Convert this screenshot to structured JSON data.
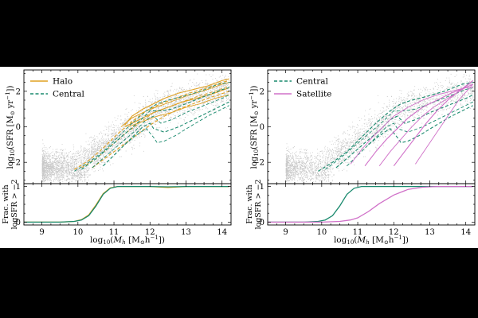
{
  "chart_data": [
    {
      "type": "line",
      "panel": "left",
      "title": "",
      "xlabel": "log10(Mh [M⊙h⁻¹])",
      "ylabel": "log10(SFR [M⊙ yr⁻¹])",
      "xlim": [
        8.5,
        14.25
      ],
      "ylim": [
        -3.2,
        3.2
      ],
      "xticks": [
        9,
        10,
        11,
        12,
        13,
        14
      ],
      "yticks": [
        -2,
        0,
        2
      ],
      "legend": {
        "placement": "top-left",
        "entries": [
          "Halo",
          "Central"
        ]
      },
      "colors": {
        "Halo": "#e0a020",
        "Central": "#1a8a6e",
        "scatter": "#c8c8c8"
      },
      "series": [
        {
          "name": "Halo",
          "style": "solid",
          "x": [
            11.3,
            11.5,
            11.8,
            12.1,
            12.4,
            12.8,
            13.2,
            13.6,
            14.0,
            14.2
          ],
          "values": [
            0.1,
            0.6,
            1.0,
            1.3,
            1.6,
            1.9,
            2.1,
            2.3,
            2.6,
            2.7
          ]
        },
        {
          "name": "Halo",
          "style": "solid",
          "x": [
            11.2,
            11.5,
            11.9,
            12.3,
            12.7,
            13.1,
            13.6,
            14.0,
            14.2
          ],
          "values": [
            0.0,
            0.5,
            0.9,
            1.2,
            1.5,
            1.8,
            2.1,
            2.4,
            2.5
          ]
        },
        {
          "name": "Halo",
          "style": "solid",
          "x": [
            11.3,
            11.7,
            12.1,
            12.5,
            12.9,
            13.3,
            13.8,
            14.2
          ],
          "values": [
            0.0,
            0.4,
            0.8,
            1.1,
            1.4,
            1.6,
            1.9,
            2.2
          ]
        },
        {
          "name": "Halo",
          "style": "solid",
          "x": [
            11.4,
            11.8,
            12.2,
            12.6,
            13.0,
            13.4,
            13.8,
            14.2
          ],
          "values": [
            0.0,
            0.3,
            0.6,
            0.8,
            1.1,
            1.3,
            1.6,
            1.8
          ]
        },
        {
          "name": "Halo",
          "style": "dashed",
          "x": [
            9.9,
            10.3,
            10.7,
            11.1,
            11.5,
            11.9,
            12.3,
            12.7,
            13.1,
            13.6,
            14.0,
            14.2
          ],
          "values": [
            -2.4,
            -1.9,
            -1.2,
            -0.4,
            0.3,
            0.9,
            1.3,
            1.6,
            1.9,
            2.2,
            2.5,
            2.6
          ]
        },
        {
          "name": "Halo",
          "style": "dashed",
          "x": [
            10.1,
            10.5,
            10.9,
            11.3,
            11.7,
            12.1,
            12.5,
            12.9,
            13.3,
            13.8,
            14.2
          ],
          "values": [
            -2.3,
            -1.8,
            -1.1,
            -0.4,
            0.2,
            0.8,
            1.1,
            1.4,
            1.7,
            2.0,
            2.3
          ]
        },
        {
          "name": "Halo",
          "style": "dashed",
          "x": [
            10.4,
            10.8,
            11.2,
            11.6,
            12.0,
            12.4,
            12.8,
            13.2,
            13.6,
            14.2
          ],
          "values": [
            -2.3,
            -1.7,
            -1.1,
            -0.5,
            0.1,
            0.6,
            1.0,
            1.3,
            1.6,
            2.0
          ]
        },
        {
          "name": "Central",
          "style": "dashed",
          "x": [
            9.9,
            10.3,
            10.7,
            11.1,
            11.5,
            11.9,
            12.2,
            12.5,
            12.9,
            13.4,
            13.9,
            14.2
          ],
          "values": [
            -2.5,
            -2.0,
            -1.4,
            -0.6,
            0.2,
            0.9,
            1.3,
            1.5,
            1.7,
            2.0,
            2.4,
            2.5
          ]
        },
        {
          "name": "Central",
          "style": "dashed",
          "x": [
            10.1,
            10.5,
            10.9,
            11.3,
            11.7,
            12.0,
            12.3,
            12.6,
            13.0,
            13.5,
            14.0,
            14.2
          ],
          "values": [
            -2.4,
            -1.8,
            -1.1,
            -0.4,
            0.3,
            0.9,
            0.9,
            1.0,
            1.3,
            1.7,
            2.1,
            2.2
          ]
        },
        {
          "name": "Central",
          "style": "dashed",
          "x": [
            10.4,
            10.8,
            11.2,
            11.6,
            11.9,
            12.1,
            12.3,
            12.6,
            13.0,
            13.5,
            14.0,
            14.2
          ],
          "values": [
            -2.3,
            -1.6,
            -0.9,
            -0.2,
            0.4,
            0.6,
            0.2,
            0.4,
            0.8,
            1.2,
            1.6,
            1.8
          ]
        },
        {
          "name": "Central",
          "style": "dashed",
          "x": [
            10.7,
            11.1,
            11.5,
            11.8,
            12.0,
            12.1,
            12.4,
            12.8,
            13.2,
            13.7,
            14.2
          ],
          "values": [
            -2.2,
            -1.4,
            -0.6,
            0.0,
            0.2,
            -0.1,
            -0.3,
            0.0,
            0.4,
            0.9,
            1.4
          ]
        },
        {
          "name": "Central",
          "style": "dashed",
          "x": [
            11.3,
            11.6,
            11.9,
            12.1,
            12.2,
            12.4,
            12.7,
            13.1,
            13.6,
            14.2
          ],
          "values": [
            -1.0,
            -0.5,
            -0.1,
            -0.6,
            -0.9,
            -0.8,
            -0.5,
            0.0,
            0.6,
            1.2
          ]
        }
      ]
    },
    {
      "type": "line",
      "panel": "left-bottom",
      "xlabel": "log10(Mh [M⊙h⁻¹])",
      "ylabel": "Frac. with logSFR > −2",
      "xlim": [
        8.5,
        14.25
      ],
      "ylim": [
        -0.08,
        1.08
      ],
      "yticks": [
        0,
        1
      ],
      "series": [
        {
          "name": "Halo",
          "x": [
            8.5,
            9.5,
            9.9,
            10.1,
            10.3,
            10.5,
            10.7,
            10.9,
            11.1,
            11.5,
            12.0,
            12.5,
            13.0,
            14.2
          ],
          "values": [
            0.0,
            0.0,
            0.02,
            0.07,
            0.2,
            0.48,
            0.8,
            0.96,
            1.0,
            1.0,
            1.0,
            0.97,
            1.0,
            1.0
          ]
        },
        {
          "name": "Central",
          "x": [
            8.5,
            9.5,
            9.9,
            10.1,
            10.3,
            10.5,
            10.7,
            10.9,
            11.1,
            11.5,
            12.0,
            12.5,
            13.0,
            14.2
          ],
          "values": [
            0.0,
            0.0,
            0.02,
            0.06,
            0.18,
            0.45,
            0.78,
            0.95,
            1.0,
            1.0,
            1.0,
            0.99,
            1.0,
            1.0
          ]
        }
      ]
    },
    {
      "type": "line",
      "panel": "right",
      "title": "",
      "xlabel": "log10(Mh [M⊙h⁻¹])",
      "ylabel": "log10(SFR [M⊙ yr⁻¹])",
      "xlim": [
        8.5,
        14.25
      ],
      "ylim": [
        -3.2,
        3.2
      ],
      "xticks": [
        9,
        10,
        11,
        12,
        13,
        14
      ],
      "yticks": [
        -2,
        0,
        2
      ],
      "legend": {
        "placement": "top-left",
        "entries": [
          "Central",
          "Satellite"
        ]
      },
      "colors": {
        "Central": "#1a8a6e",
        "Satellite": "#d070c8",
        "scatter": "#c8c8c8"
      },
      "series": [
        {
          "name": "Central",
          "style": "dashed",
          "x": [
            9.9,
            10.3,
            10.7,
            11.1,
            11.5,
            11.9,
            12.2,
            12.5,
            12.9,
            13.4,
            13.9,
            14.2
          ],
          "values": [
            -2.5,
            -2.0,
            -1.4,
            -0.6,
            0.2,
            0.9,
            1.3,
            1.5,
            1.7,
            2.0,
            2.4,
            2.5
          ]
        },
        {
          "name": "Central",
          "style": "dashed",
          "x": [
            10.1,
            10.5,
            10.9,
            11.3,
            11.7,
            12.0,
            12.3,
            12.6,
            13.0,
            13.5,
            14.0,
            14.2
          ],
          "values": [
            -2.4,
            -1.8,
            -1.1,
            -0.4,
            0.3,
            0.9,
            0.9,
            1.0,
            1.3,
            1.7,
            2.1,
            2.2
          ]
        },
        {
          "name": "Central",
          "style": "dashed",
          "x": [
            10.4,
            10.8,
            11.2,
            11.6,
            11.9,
            12.1,
            12.3,
            12.6,
            13.0,
            13.5,
            14.0,
            14.2
          ],
          "values": [
            -2.3,
            -1.6,
            -0.9,
            -0.2,
            0.4,
            0.6,
            0.2,
            0.4,
            0.8,
            1.2,
            1.6,
            1.8
          ]
        },
        {
          "name": "Central",
          "style": "dashed",
          "x": [
            10.7,
            11.1,
            11.5,
            11.8,
            12.0,
            12.1,
            12.4,
            12.8,
            13.2,
            13.7,
            14.2
          ],
          "values": [
            -2.2,
            -1.4,
            -0.6,
            0.0,
            0.2,
            -0.1,
            -0.3,
            0.0,
            0.4,
            0.9,
            1.4
          ]
        },
        {
          "name": "Central",
          "style": "dashed",
          "x": [
            11.3,
            11.6,
            11.9,
            12.1,
            12.2,
            12.4,
            12.7,
            13.1,
            13.6,
            14.2
          ],
          "values": [
            -1.0,
            -0.5,
            -0.1,
            -0.6,
            -0.9,
            -0.8,
            -0.5,
            0.0,
            0.6,
            1.2
          ]
        },
        {
          "name": "Satellite",
          "style": "solid",
          "x": [
            10.8,
            11.1,
            11.4,
            11.7,
            12.0,
            12.4,
            12.8,
            13.2,
            13.6,
            14.0,
            14.2
          ],
          "values": [
            -2.1,
            -1.3,
            -0.6,
            0.0,
            0.6,
            1.1,
            1.5,
            1.8,
            2.0,
            2.2,
            2.2
          ]
        },
        {
          "name": "Satellite",
          "style": "solid",
          "x": [
            11.2,
            11.5,
            11.8,
            12.1,
            12.4,
            12.8,
            13.2,
            13.6,
            14.0,
            14.2
          ],
          "values": [
            -2.2,
            -1.4,
            -0.7,
            -0.1,
            0.5,
            1.1,
            1.5,
            1.9,
            2.2,
            2.4
          ]
        },
        {
          "name": "Satellite",
          "style": "solid",
          "x": [
            11.6,
            11.9,
            12.2,
            12.5,
            12.8,
            13.1,
            13.5,
            13.9,
            14.2
          ],
          "values": [
            -2.2,
            -1.4,
            -0.7,
            0.0,
            0.6,
            1.1,
            1.6,
            2.1,
            2.6
          ]
        },
        {
          "name": "Satellite",
          "style": "solid",
          "x": [
            12.0,
            12.3,
            12.6,
            12.9,
            13.2,
            13.5,
            13.8,
            14.2
          ],
          "values": [
            -2.2,
            -1.4,
            -0.6,
            0.2,
            0.9,
            1.5,
            2.0,
            2.6
          ]
        },
        {
          "name": "Satellite",
          "style": "solid",
          "x": [
            12.6,
            12.9,
            13.2,
            13.5,
            13.8,
            14.2
          ],
          "values": [
            -2.1,
            -1.2,
            -0.3,
            0.6,
            1.5,
            2.4
          ]
        }
      ]
    },
    {
      "type": "line",
      "panel": "right-bottom",
      "xlabel": "log10(Mh [M⊙h⁻¹])",
      "ylabel": "Frac. with logSFR > −2",
      "xlim": [
        8.5,
        14.25
      ],
      "ylim": [
        -0.08,
        1.08
      ],
      "yticks": [
        0,
        1
      ],
      "series": [
        {
          "name": "Central",
          "x": [
            8.5,
            9.5,
            9.9,
            10.1,
            10.3,
            10.5,
            10.7,
            10.9,
            11.1,
            11.5,
            12.0,
            13.0,
            14.2
          ],
          "values": [
            0.0,
            0.0,
            0.02,
            0.06,
            0.18,
            0.45,
            0.78,
            0.95,
            1.0,
            1.0,
            1.0,
            1.0,
            1.0
          ]
        },
        {
          "name": "Satellite",
          "x": [
            8.5,
            10.0,
            10.5,
            10.8,
            11.0,
            11.3,
            11.6,
            12.0,
            12.4,
            12.8,
            13.2,
            14.2
          ],
          "values": [
            0.0,
            0.0,
            0.02,
            0.06,
            0.12,
            0.3,
            0.52,
            0.76,
            0.92,
            0.98,
            1.0,
            1.0
          ]
        }
      ]
    }
  ],
  "labels": {
    "ylabel_main_prefix": "log",
    "ylabel_main_sub": "10",
    "ylabel_main_rest": "(SFR [M",
    "ylabel_main_odot": "⊙",
    "ylabel_main_unit": " yr",
    "ylabel_main_exp": "−1",
    "ylabel_main_close": "])",
    "frac_line1": "Frac. with",
    "frac_line2": "logSFR > −2",
    "xlabel_prefix": "log",
    "xlabel_sub": "10",
    "xlabel_open": "(",
    "xlabel_M": "M",
    "xlabel_h": "h",
    "xlabel_bracket": " [M",
    "xlabel_odot": "⊙",
    "xlabel_unit": "h",
    "xlabel_exp": "−1",
    "xlabel_close": "])"
  }
}
